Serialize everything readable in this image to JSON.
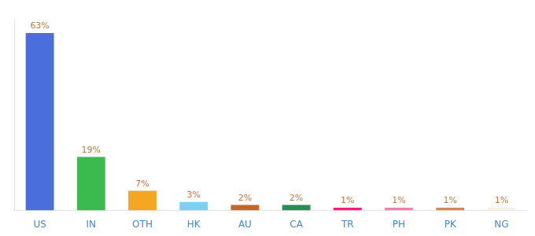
{
  "chart_data": {
    "type": "bar",
    "categories": [
      "US",
      "IN",
      "OTH",
      "HK",
      "AU",
      "CA",
      "TR",
      "PH",
      "PK",
      "NG"
    ],
    "values": [
      63,
      19,
      7,
      3,
      2,
      2,
      1,
      1,
      1,
      1
    ],
    "value_labels": [
      "63%",
      "19%",
      "7%",
      "3%",
      "2%",
      "2%",
      "1%",
      "1%",
      "1%",
      "1%"
    ],
    "colors": [
      "#4a6fdc",
      "#3dba4e",
      "#f5a623",
      "#7ecff5",
      "#c0692a",
      "#2e8b57",
      "#ff1a75",
      "#f47faa",
      "#d4855a",
      "#f5f0e8"
    ],
    "ylim": [
      0,
      68
    ],
    "grid": false,
    "data_labels": true,
    "tick_labels": "x"
  }
}
